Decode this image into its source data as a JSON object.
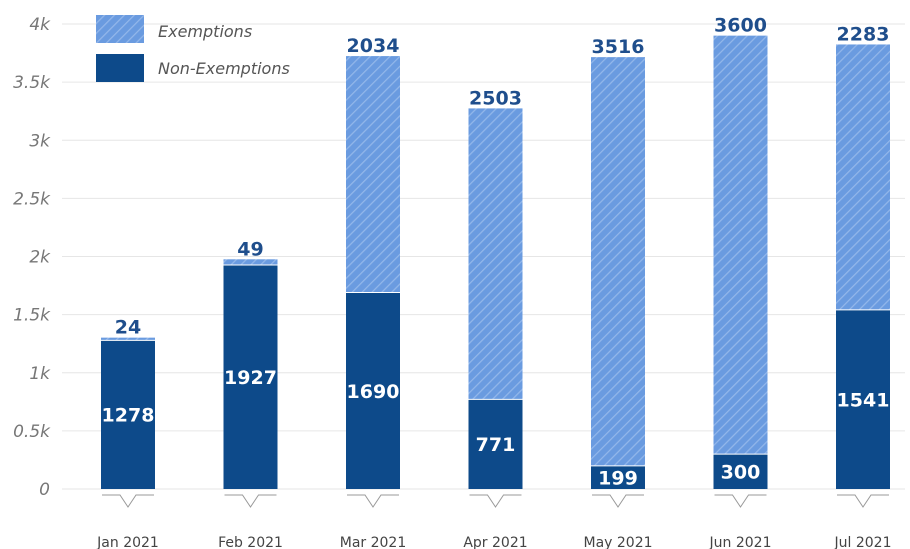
{
  "chart_data": {
    "type": "bar",
    "stacked": true,
    "categories": [
      "Jan 2021",
      "Feb 2021",
      "Mar 2021",
      "Apr 2021",
      "May 2021",
      "Jun 2021",
      "Jul 2021"
    ],
    "series": [
      {
        "name": "Non-Exemptions",
        "values": [
          1278,
          1927,
          1690,
          771,
          199,
          300,
          1541
        ],
        "color": "#0d4a8a"
      },
      {
        "name": "Exemptions",
        "values": [
          24,
          49,
          2034,
          2503,
          3516,
          3600,
          2283
        ],
        "color": "#6a9be0",
        "pattern": "diagonal-hatch"
      }
    ],
    "y_ticks": [
      "0",
      "0.5k",
      "1k",
      "1.5k",
      "2k",
      "2.5k",
      "3k",
      "3.5k",
      "4k"
    ],
    "ylim": [
      0,
      4000
    ],
    "legend": "top-left",
    "grid": true
  }
}
